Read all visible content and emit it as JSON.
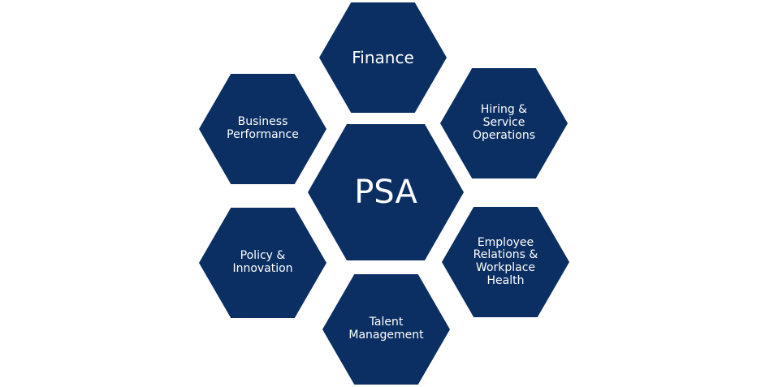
{
  "diagram": {
    "center": {
      "label": "PSA"
    },
    "nodes": {
      "top": {
        "label": "Finance"
      },
      "top_left": {
        "label": "Business\nPerformance"
      },
      "top_right": {
        "label": "Hiring &\nService\nOperations"
      },
      "bottom_left": {
        "label": "Policy &\nInnovation"
      },
      "bottom_right": {
        "label": "Employee\nRelations &\nWorkplace\nHealth"
      },
      "bottom": {
        "label": "Talent\nManagement"
      }
    },
    "colors": {
      "hexagon_fill": "#0b2f63",
      "text": "#ffffff",
      "background": "#ffffff"
    }
  }
}
